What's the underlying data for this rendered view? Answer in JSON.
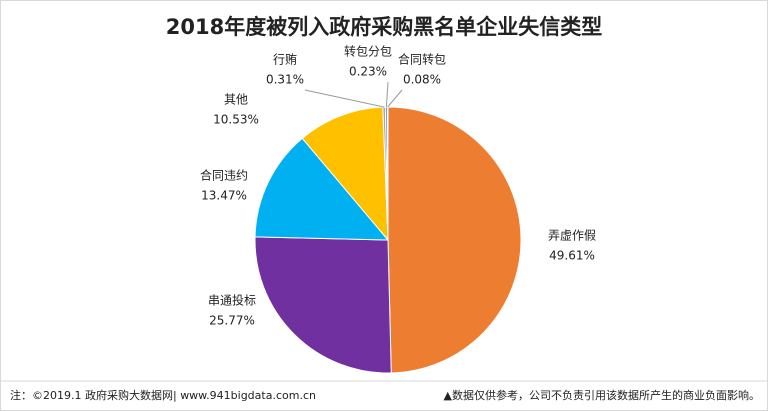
{
  "chart_data": {
    "type": "pie",
    "title": "2018年度被列入政府采购黑名单企业失信类型",
    "categories": [
      "弄虚作假",
      "串通投标",
      "合同违约",
      "其他",
      "行贿",
      "转包分包",
      "合同转包"
    ],
    "values": [
      49.61,
      25.77,
      13.47,
      10.53,
      0.31,
      0.23,
      0.08
    ],
    "value_labels": [
      "49.61%",
      "25.77%",
      "13.47%",
      "10.53%",
      "0.31%",
      "0.23%",
      "0.08%"
    ],
    "colors": [
      "#ED7D31",
      "#7030A0",
      "#00B0F0",
      "#FFC000",
      "#A5A5A5",
      "#4472C4",
      "#70AD47"
    ],
    "footer_left": "注：©2019.1 政府采购大数据网| www.941bigdata.com.cn",
    "footer_right": "▲数据仅供参考，公司不负责引用该数据所产生的商业负面影响。"
  }
}
